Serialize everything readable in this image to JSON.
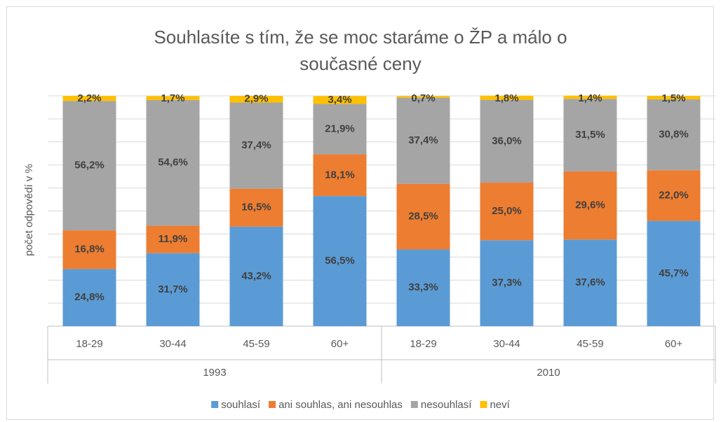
{
  "chart_data": {
    "type": "stacked_bar",
    "title": "Souhlasíte s tím, že se moc staráme o ŽP a málo o současné ceny",
    "ylabel": "počet odpovědí v %",
    "groups": [
      {
        "name": "1993",
        "categories": [
          "18-29",
          "30-44",
          "45-59",
          "60+"
        ]
      },
      {
        "name": "2010",
        "categories": [
          "18-29",
          "30-44",
          "45-59",
          "60+"
        ]
      }
    ],
    "series": [
      {
        "name": "souhlasí",
        "color": "#5b9bd5",
        "values": [
          24.8,
          31.7,
          43.2,
          56.5,
          33.3,
          37.3,
          37.6,
          45.7
        ],
        "value_labels": [
          "24,8%",
          "31,7%",
          "43,2%",
          "56,5%",
          "33,3%",
          "37,3%",
          "37,6%",
          "45,7%"
        ]
      },
      {
        "name": "ani souhlas, ani nesouhlas",
        "color": "#ed7d31",
        "values": [
          16.8,
          11.9,
          16.5,
          18.1,
          28.5,
          25.0,
          29.6,
          22.0
        ],
        "value_labels": [
          "16,8%",
          "11,9%",
          "16,5%",
          "18,1%",
          "28,5%",
          "25,0%",
          "29,6%",
          "22,0%"
        ]
      },
      {
        "name": "nesouhlasí",
        "color": "#a5a5a5",
        "values": [
          56.2,
          54.6,
          37.4,
          21.9,
          37.4,
          36.0,
          31.5,
          30.8
        ],
        "value_labels": [
          "56,2%",
          "54,6%",
          "37,4%",
          "21,9%",
          "37,4%",
          "36,0%",
          "31,5%",
          "30,8%"
        ]
      },
      {
        "name": "neví",
        "color": "#ffc000",
        "values": [
          2.2,
          1.7,
          2.9,
          3.4,
          0.7,
          1.8,
          1.4,
          1.5
        ],
        "value_labels": [
          "2,2%",
          "1,7%",
          "2,9%",
          "3,4%",
          "0,7%",
          "1,8%",
          "1,4%",
          "1,5%"
        ]
      }
    ],
    "ylim": [
      0,
      100
    ],
    "yticks": [
      0,
      10,
      20,
      30,
      40,
      50,
      60,
      70,
      80,
      90,
      100
    ],
    "ytick_labels": false,
    "grid": true,
    "legend": "bottom"
  }
}
